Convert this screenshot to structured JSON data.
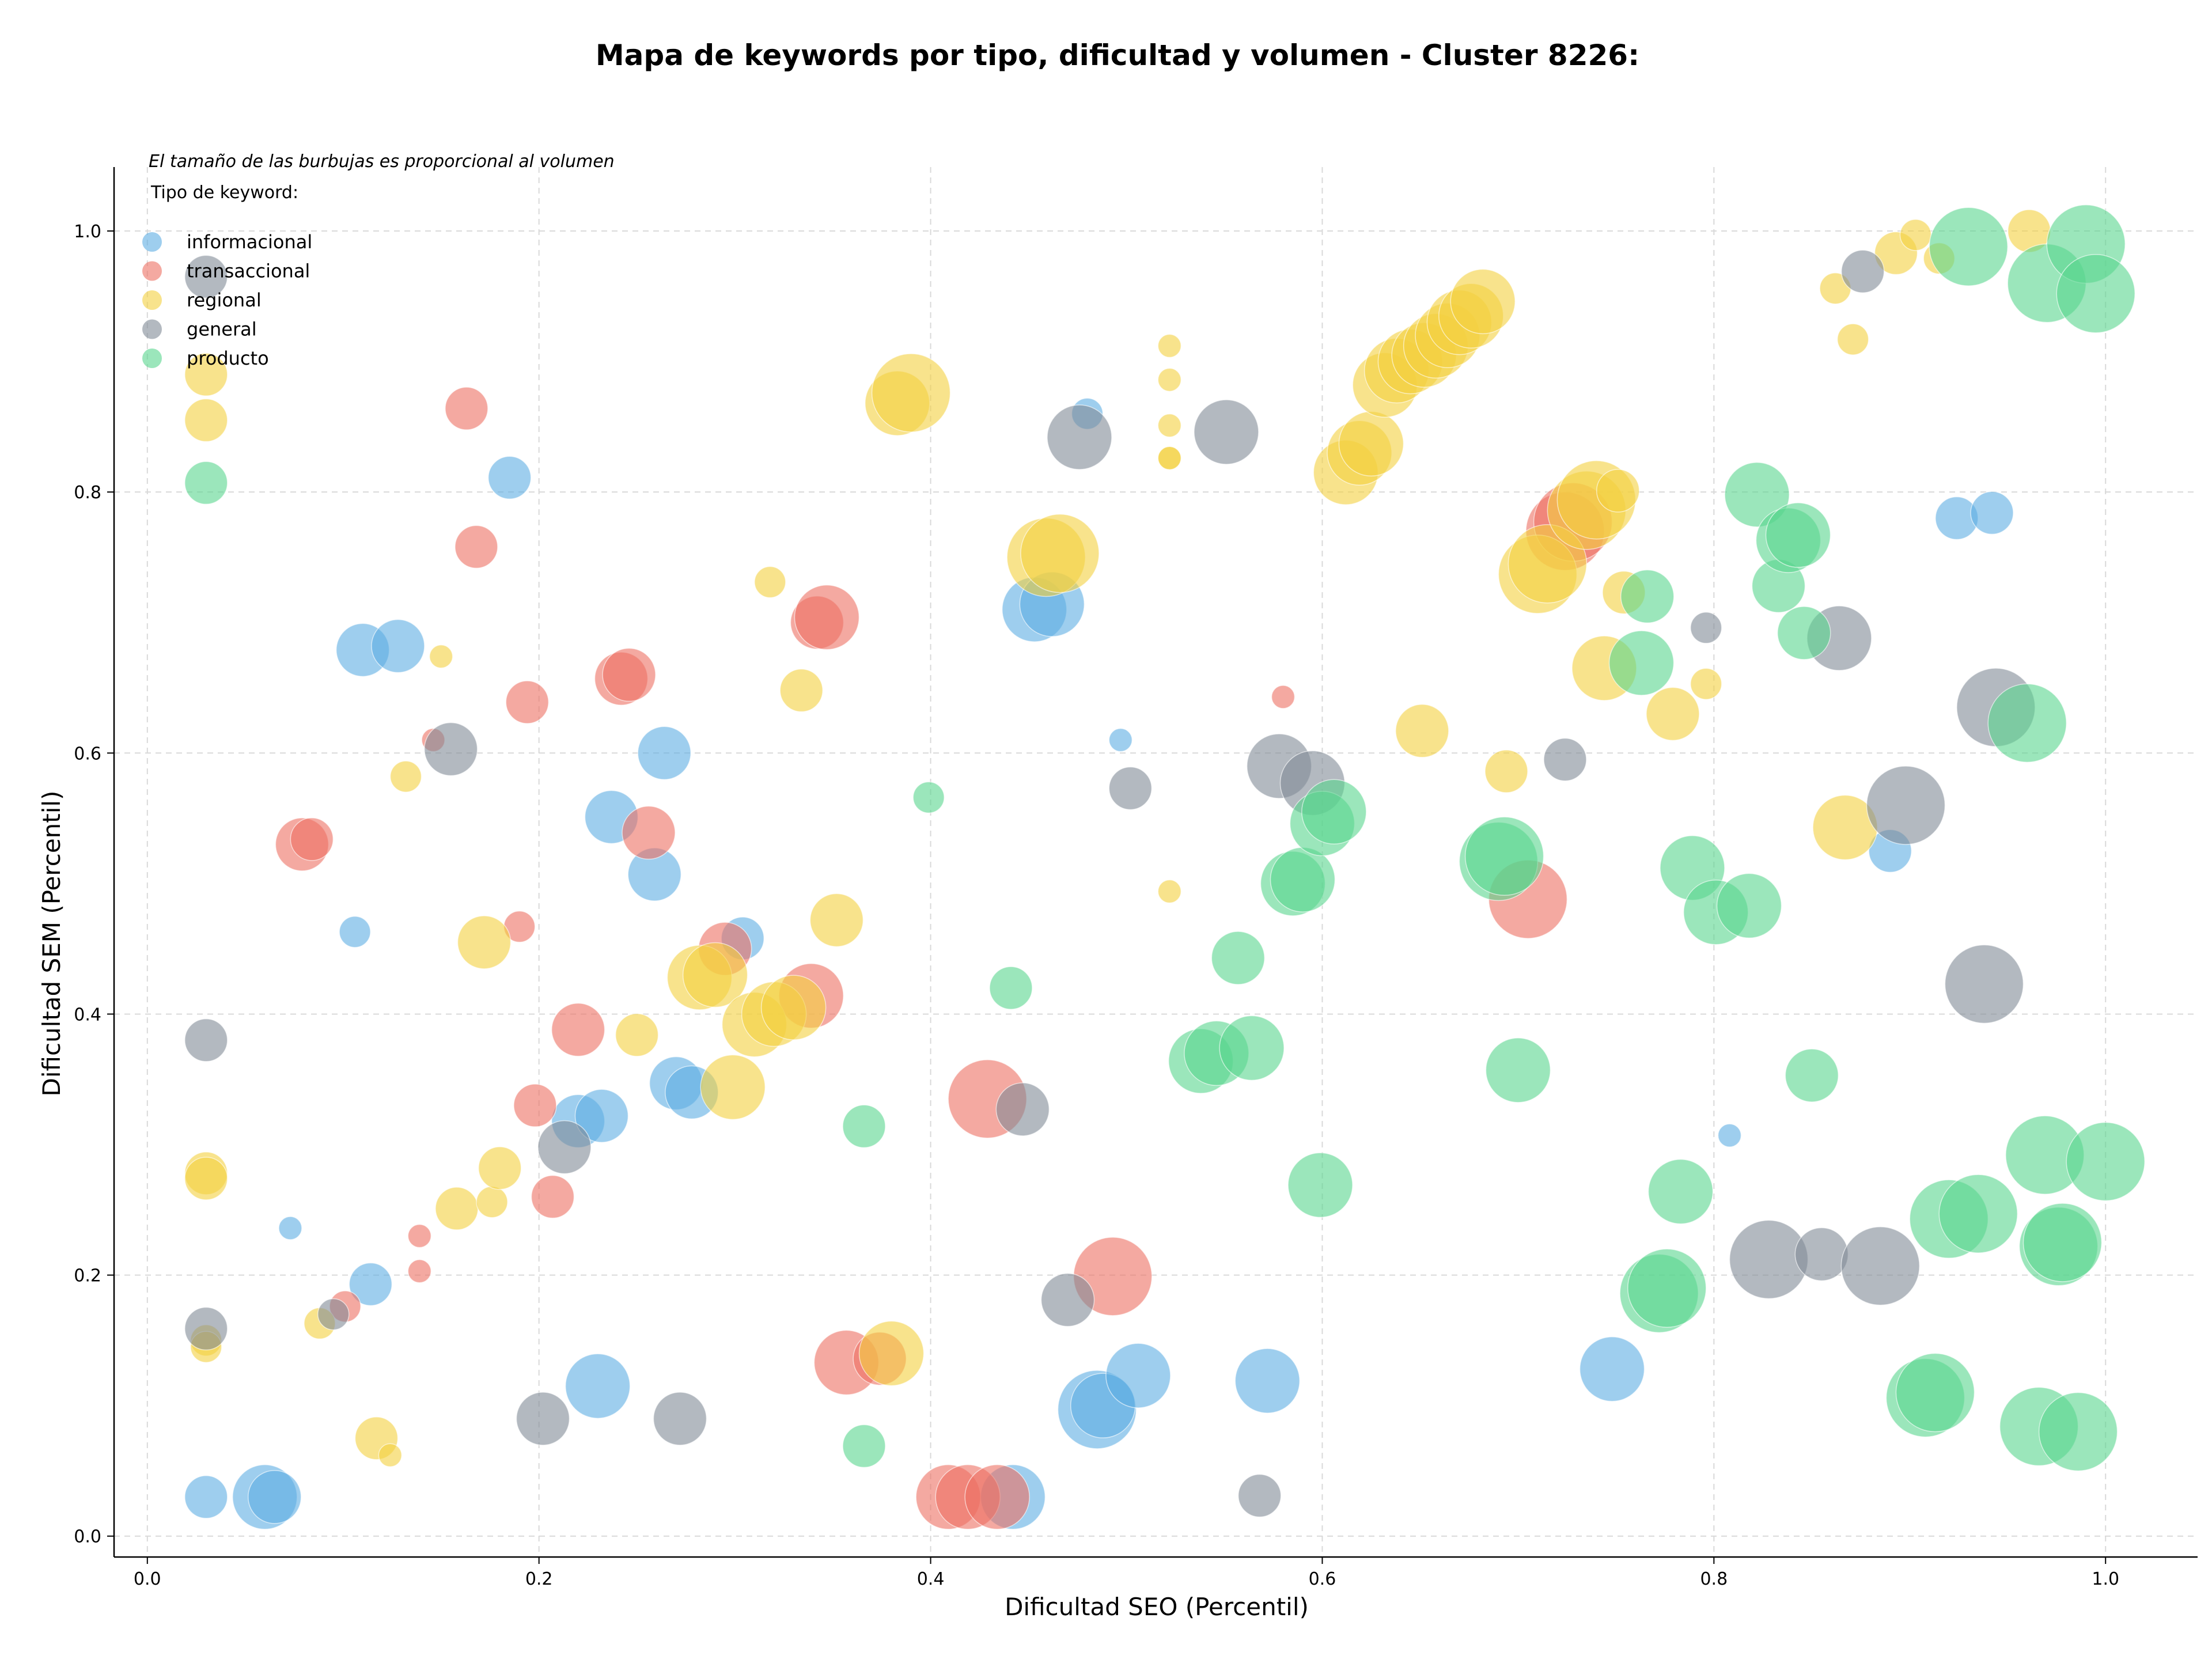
{
  "chart_data": {
    "type": "scatter",
    "title": "Mapa de keywords por tipo, dificultad y volumen - Cluster 8226:",
    "subtitle": "El tamaño de las burbujas es proporcional al volumen",
    "xlabel": "Dificultad SEO (Percentil)",
    "ylabel": "Dificultad SEM (Percentil)",
    "xlim": [
      -0.017,
      1.047
    ],
    "ylim": [
      -0.016,
      1.049
    ],
    "xticks": [
      "0.0",
      "0.2",
      "0.4",
      "0.6",
      "0.8",
      "1.0"
    ],
    "yticks": [
      "0.0",
      "0.2",
      "0.4",
      "0.6",
      "0.8",
      "1.0"
    ],
    "grid": true,
    "legend": {
      "title": "Tipo de keyword:",
      "position": "top-left"
    },
    "series": [
      {
        "name": "informacional",
        "color": "#5dade2",
        "points": [
          [
            0.03,
            0.03,
            3
          ],
          [
            0.06,
            0.03,
            5
          ],
          [
            0.065,
            0.03,
            4
          ],
          [
            0.073,
            0.236,
            1
          ],
          [
            0.106,
            0.463,
            2
          ],
          [
            0.11,
            0.679,
            4
          ],
          [
            0.128,
            0.682,
            4
          ],
          [
            0.114,
            0.193,
            3
          ],
          [
            0.185,
            0.811,
            3
          ],
          [
            0.23,
            0.115,
            5
          ],
          [
            0.22,
            0.318,
            4
          ],
          [
            0.232,
            0.322,
            4
          ],
          [
            0.237,
            0.551,
            4
          ],
          [
            0.264,
            0.6,
            4
          ],
          [
            0.259,
            0.507,
            4
          ],
          [
            0.27,
            0.347,
            4
          ],
          [
            0.278,
            0.34,
            4
          ],
          [
            0.304,
            0.458,
            3
          ],
          [
            0.453,
            0.71,
            5
          ],
          [
            0.462,
            0.714,
            5
          ],
          [
            0.48,
            0.86,
            2
          ],
          [
            0.497,
            0.61,
            1
          ],
          [
            0.485,
            0.097,
            6
          ],
          [
            0.488,
            0.1,
            5
          ],
          [
            0.506,
            0.123,
            5
          ],
          [
            0.442,
            0.03,
            5
          ],
          [
            0.572,
            0.119,
            5
          ],
          [
            0.748,
            0.128,
            5
          ],
          [
            0.808,
            0.307,
            1
          ],
          [
            0.89,
            0.525,
            3
          ],
          [
            0.924,
            0.78,
            3
          ],
          [
            0.942,
            0.784,
            3
          ]
        ]
      },
      {
        "name": "transaccional",
        "color": "#ec7063",
        "points": [
          [
            0.079,
            0.53,
            4
          ],
          [
            0.084,
            0.534,
            3
          ],
          [
            0.101,
            0.176,
            2
          ],
          [
            0.139,
            0.23,
            1
          ],
          [
            0.139,
            0.203,
            1
          ],
          [
            0.146,
            0.61,
            1
          ],
          [
            0.163,
            0.864,
            3
          ],
          [
            0.168,
            0.758,
            3
          ],
          [
            0.19,
            0.467,
            2
          ],
          [
            0.194,
            0.639,
            3
          ],
          [
            0.198,
            0.33,
            3
          ],
          [
            0.207,
            0.26,
            3
          ],
          [
            0.22,
            0.388,
            4
          ],
          [
            0.242,
            0.657,
            4
          ],
          [
            0.246,
            0.66,
            4
          ],
          [
            0.256,
            0.539,
            4
          ],
          [
            0.295,
            0.45,
            4
          ],
          [
            0.339,
            0.414,
            5
          ],
          [
            0.342,
            0.7,
            4
          ],
          [
            0.347,
            0.704,
            5
          ],
          [
            0.357,
            0.133,
            5
          ],
          [
            0.374,
            0.136,
            4
          ],
          [
            0.409,
            0.03,
            5
          ],
          [
            0.419,
            0.03,
            5
          ],
          [
            0.429,
            0.335,
            6
          ],
          [
            0.434,
            0.03,
            5
          ],
          [
            0.493,
            0.199,
            6
          ],
          [
            0.58,
            0.643,
            1
          ],
          [
            0.705,
            0.488,
            6
          ],
          [
            0.724,
            0.77,
            6
          ],
          [
            0.728,
            0.777,
            6
          ]
        ]
      },
      {
        "name": "regional",
        "color": "#f4d03f",
        "points": [
          [
            0.03,
            0.89,
            3
          ],
          [
            0.03,
            0.855,
            3
          ],
          [
            0.03,
            0.278,
            3
          ],
          [
            0.03,
            0.274,
            3
          ],
          [
            0.03,
            0.15,
            2
          ],
          [
            0.03,
            0.145,
            2
          ],
          [
            0.088,
            0.163,
            2
          ],
          [
            0.117,
            0.075,
            3
          ],
          [
            0.124,
            0.062,
            1
          ],
          [
            0.132,
            0.582,
            2
          ],
          [
            0.15,
            0.674,
            1
          ],
          [
            0.158,
            0.251,
            3
          ],
          [
            0.172,
            0.455,
            4
          ],
          [
            0.176,
            0.256,
            2
          ],
          [
            0.18,
            0.282,
            3
          ],
          [
            0.25,
            0.384,
            3
          ],
          [
            0.282,
            0.428,
            5
          ],
          [
            0.29,
            0.43,
            5
          ],
          [
            0.299,
            0.344,
            5
          ],
          [
            0.31,
            0.392,
            5
          ],
          [
            0.318,
            0.731,
            2
          ],
          [
            0.32,
            0.4,
            5
          ],
          [
            0.33,
            0.405,
            5
          ],
          [
            0.334,
            0.648,
            3
          ],
          [
            0.352,
            0.472,
            4
          ],
          [
            0.38,
            0.14,
            5
          ],
          [
            0.383,
            0.868,
            5
          ],
          [
            0.39,
            0.876,
            6
          ],
          [
            0.459,
            0.75,
            6
          ],
          [
            0.466,
            0.753,
            6
          ],
          [
            0.522,
            0.912,
            1
          ],
          [
            0.522,
            0.886,
            1
          ],
          [
            0.522,
            0.851,
            1
          ],
          [
            0.522,
            0.826,
            1
          ],
          [
            0.522,
            0.826,
            1
          ],
          [
            0.522,
            0.494,
            1
          ],
          [
            0.612,
            0.815,
            5
          ],
          [
            0.619,
            0.83,
            5
          ],
          [
            0.625,
            0.837,
            5
          ],
          [
            0.632,
            0.882,
            5
          ],
          [
            0.638,
            0.893,
            5
          ],
          [
            0.645,
            0.9,
            5
          ],
          [
            0.651,
            0.617,
            4
          ],
          [
            0.652,
            0.905,
            5
          ],
          [
            0.658,
            0.912,
            5
          ],
          [
            0.664,
            0.92,
            5
          ],
          [
            0.67,
            0.93,
            5
          ],
          [
            0.676,
            0.935,
            5
          ],
          [
            0.682,
            0.946,
            5
          ],
          [
            0.694,
            0.586,
            3
          ],
          [
            0.71,
            0.737,
            6
          ],
          [
            0.715,
            0.745,
            6
          ],
          [
            0.735,
            0.786,
            6
          ],
          [
            0.74,
            0.794,
            6
          ],
          [
            0.744,
            0.665,
            5
          ],
          [
            0.751,
            0.801,
            3
          ],
          [
            0.754,
            0.723,
            3
          ],
          [
            0.779,
            0.63,
            4
          ],
          [
            0.796,
            0.653,
            2
          ],
          [
            0.867,
            0.543,
            5
          ],
          [
            0.862,
            0.956,
            2
          ],
          [
            0.871,
            0.917,
            2
          ],
          [
            0.893,
            0.983,
            3
          ],
          [
            0.903,
            0.997,
            2
          ],
          [
            0.915,
            0.979,
            2
          ],
          [
            0.961,
            1.0,
            3
          ]
        ]
      },
      {
        "name": "general",
        "color": "#808b96",
        "points": [
          [
            0.03,
            0.965,
            3
          ],
          [
            0.03,
            0.38,
            3
          ],
          [
            0.03,
            0.159,
            3
          ],
          [
            0.095,
            0.17,
            2
          ],
          [
            0.155,
            0.603,
            4
          ],
          [
            0.202,
            0.09,
            4
          ],
          [
            0.213,
            0.298,
            4
          ],
          [
            0.272,
            0.09,
            4
          ],
          [
            0.447,
            0.327,
            4
          ],
          [
            0.47,
            0.181,
            4
          ],
          [
            0.476,
            0.842,
            5
          ],
          [
            0.502,
            0.573,
            3
          ],
          [
            0.551,
            0.846,
            5
          ],
          [
            0.568,
            0.031,
            3
          ],
          [
            0.578,
            0.59,
            5
          ],
          [
            0.595,
            0.577,
            5
          ],
          [
            0.724,
            0.595,
            3
          ],
          [
            0.796,
            0.696,
            2
          ],
          [
            0.828,
            0.212,
            6
          ],
          [
            0.855,
            0.216,
            4
          ],
          [
            0.864,
            0.688,
            5
          ],
          [
            0.876,
            0.969,
            3
          ],
          [
            0.885,
            0.207,
            6
          ],
          [
            0.898,
            0.56,
            6
          ],
          [
            0.938,
            0.423,
            6
          ],
          [
            0.944,
            0.635,
            6
          ]
        ]
      },
      {
        "name": "producto",
        "color": "#58d68d",
        "points": [
          [
            0.03,
            0.807,
            3
          ],
          [
            0.366,
            0.314,
            3
          ],
          [
            0.366,
            0.069,
            3
          ],
          [
            0.399,
            0.566,
            2
          ],
          [
            0.441,
            0.42,
            3
          ],
          [
            0.538,
            0.364,
            5
          ],
          [
            0.546,
            0.37,
            5
          ],
          [
            0.557,
            0.443,
            4
          ],
          [
            0.564,
            0.374,
            5
          ],
          [
            0.585,
            0.5,
            5
          ],
          [
            0.59,
            0.503,
            5
          ],
          [
            0.599,
            0.269,
            5
          ],
          [
            0.6,
            0.546,
            5
          ],
          [
            0.606,
            0.555,
            5
          ],
          [
            0.69,
            0.517,
            6
          ],
          [
            0.693,
            0.521,
            6
          ],
          [
            0.7,
            0.357,
            5
          ],
          [
            0.763,
            0.669,
            5
          ],
          [
            0.766,
            0.72,
            4
          ],
          [
            0.772,
            0.186,
            6
          ],
          [
            0.776,
            0.19,
            6
          ],
          [
            0.783,
            0.264,
            5
          ],
          [
            0.789,
            0.512,
            5
          ],
          [
            0.801,
            0.478,
            5
          ],
          [
            0.818,
            0.483,
            5
          ],
          [
            0.822,
            0.798,
            5
          ],
          [
            0.833,
            0.728,
            4
          ],
          [
            0.838,
            0.763,
            5
          ],
          [
            0.843,
            0.767,
            5
          ],
          [
            0.846,
            0.692,
            4
          ],
          [
            0.85,
            0.353,
            4
          ],
          [
            0.908,
            0.106,
            6
          ],
          [
            0.913,
            0.11,
            6
          ],
          [
            0.92,
            0.243,
            6
          ],
          [
            0.93,
            0.988,
            6
          ],
          [
            0.935,
            0.247,
            6
          ],
          [
            0.966,
            0.084,
            6
          ],
          [
            0.969,
            0.292,
            6
          ],
          [
            0.97,
            0.96,
            6
          ],
          [
            0.976,
            0.222,
            6
          ],
          [
            0.978,
            0.225,
            6
          ],
          [
            0.986,
            0.08,
            6
          ],
          [
            0.99,
            0.99,
            6
          ],
          [
            0.995,
            0.952,
            6
          ],
          [
            0.96,
            0.623,
            6
          ],
          [
            1.0,
            0.287,
            6
          ]
        ]
      }
    ]
  }
}
